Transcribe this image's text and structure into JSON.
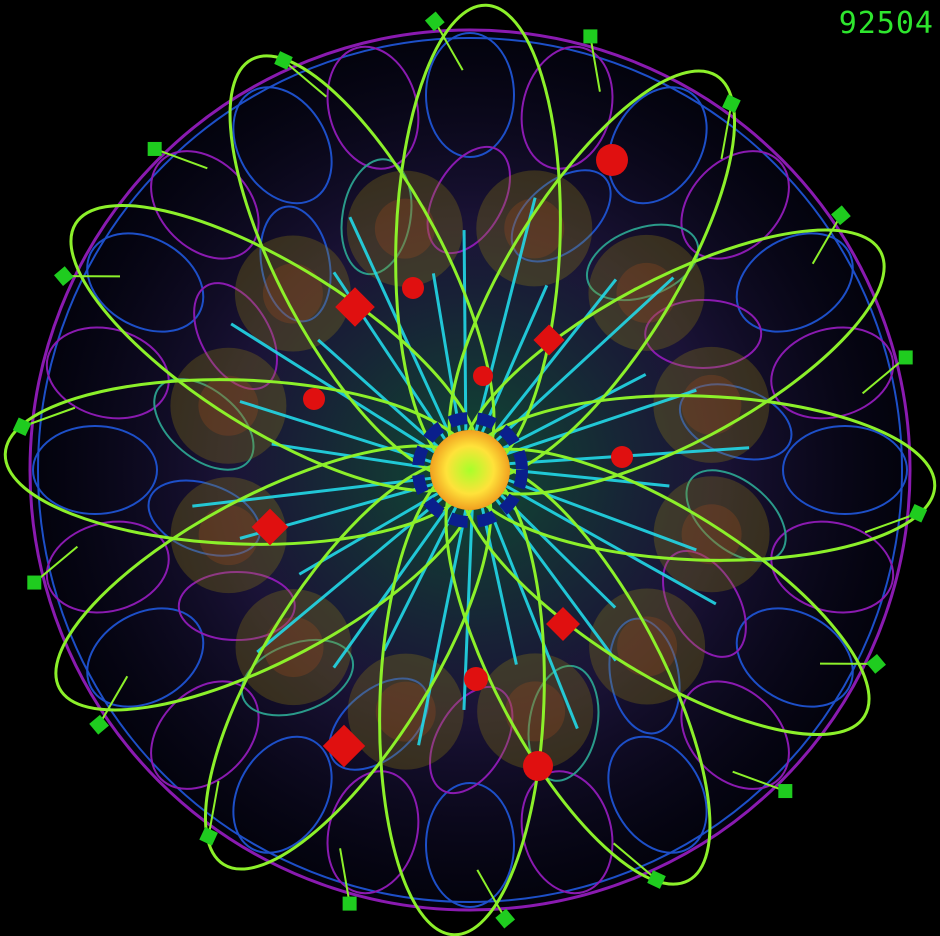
{
  "hud": {
    "score": "92504"
  },
  "colors": {
    "background": "#000000",
    "score": "#2ee62e",
    "curve": "#8cf02a",
    "node": "#1fcc1f",
    "enemy": "#e01010",
    "ray": "#22d8e8",
    "ring_blue": "#1d4fc8",
    "ring_purple": "#8a1ab0",
    "core": "#ffe23a",
    "core_ring": "#0a1f8c"
  },
  "game": {
    "petal_count": 6,
    "node_count": 18,
    "enemy_circles": 8,
    "enemy_diamonds": 6,
    "ray_count": 30
  }
}
